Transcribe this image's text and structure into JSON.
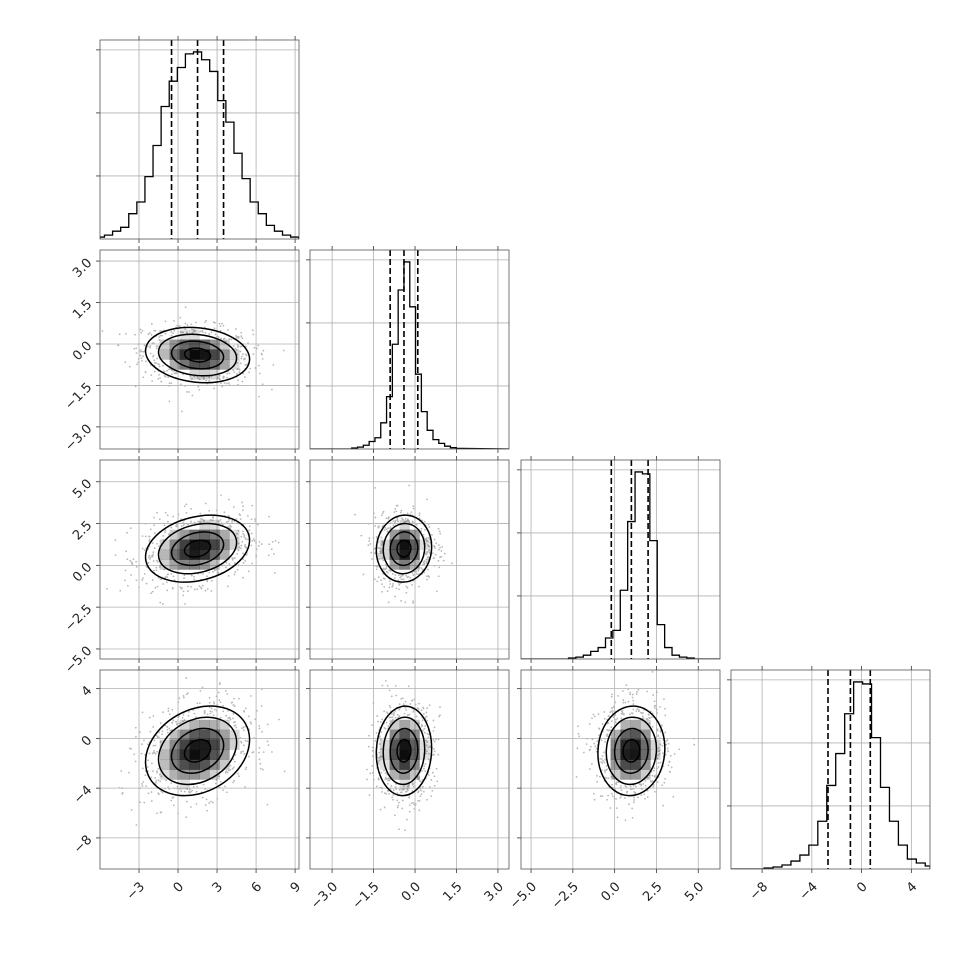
{
  "chart_data": {
    "type": "corner",
    "n_params": 4,
    "params": [
      {
        "range": [
          -6,
          9.3
        ],
        "ticks": [
          -3,
          0,
          3,
          6,
          9
        ],
        "tick_labels": [
          "−3",
          "0",
          "3",
          "6",
          "9"
        ],
        "mean": 1.5,
        "std": 2.0,
        "quantiles": [
          -0.5,
          1.5,
          3.5
        ],
        "hist_heights": [
          0.0,
          0.01,
          0.02,
          0.04,
          0.06,
          0.13,
          0.19,
          0.32,
          0.48,
          0.68,
          0.81,
          0.88,
          0.95,
          0.96,
          0.92,
          0.86,
          0.71,
          0.6,
          0.44,
          0.31,
          0.19,
          0.13,
          0.07,
          0.04,
          0.02,
          0.01,
          0.005
        ]
      },
      {
        "range": [
          -3.8,
          3.4
        ],
        "ticks": [
          -3.0,
          -1.5,
          0.0,
          1.5,
          3.0
        ],
        "tick_labels": [
          "−3.0",
          "−1.5",
          "0.0",
          "1.5",
          "3.0"
        ],
        "mean": -0.4,
        "std": 0.5,
        "quantiles": [
          -0.9,
          -0.4,
          0.1
        ],
        "hist_heights": [
          0.0,
          0.005,
          0.01,
          0.02,
          0.04,
          0.06,
          0.14,
          0.28,
          0.56,
          0.85,
          1.0,
          0.76,
          0.4,
          0.2,
          0.1,
          0.05,
          0.03,
          0.015,
          0.007,
          0.003
        ]
      },
      {
        "range": [
          -5.6,
          6.3
        ],
        "ticks": [
          -5.0,
          -2.5,
          0.0,
          2.5,
          5.0
        ],
        "tick_labels": [
          "−5.0",
          "−2.5",
          "0.0",
          "2.5",
          "5.0"
        ],
        "mean": 1.0,
        "std": 1.0,
        "quantiles": [
          -0.2,
          1.0,
          2.0
        ],
        "hist_heights": [
          0.0,
          0.005,
          0.01,
          0.02,
          0.04,
          0.06,
          0.11,
          0.15,
          0.36,
          0.72,
          0.98,
          0.97,
          0.62,
          0.18,
          0.06,
          0.02,
          0.01,
          0.005,
          0.0
        ]
      },
      {
        "range": [
          -10.5,
          5.5
        ],
        "ticks": [
          -8,
          -4,
          0,
          4
        ],
        "tick_labels": [
          "−8",
          "−4",
          "0",
          "4"
        ],
        "mean": -1.0,
        "std": 1.8,
        "quantiles": [
          -2.7,
          -0.9,
          0.7
        ],
        "hist_heights": [
          0.0,
          0.005,
          0.01,
          0.02,
          0.04,
          0.07,
          0.12,
          0.24,
          0.42,
          0.58,
          0.78,
          0.94,
          0.93,
          0.66,
          0.41,
          0.24,
          0.12,
          0.05,
          0.03,
          0.015,
          0.005
        ]
      }
    ],
    "correlations": [
      [
        1,
        -0.15,
        0.25,
        0.25
      ],
      [
        -0.15,
        1,
        0.05,
        0.05
      ],
      [
        0.25,
        0.05,
        1,
        0.05
      ],
      [
        0.25,
        0.05,
        0.05,
        1
      ]
    ],
    "contour_levels_sigma": [
      0.5,
      1.0,
      1.5,
      2.0
    ],
    "grid": true,
    "colors": {
      "line": "#000000",
      "scatter": "#b8b8b8",
      "density": "#000000",
      "grid": "#b0b0b0"
    }
  }
}
